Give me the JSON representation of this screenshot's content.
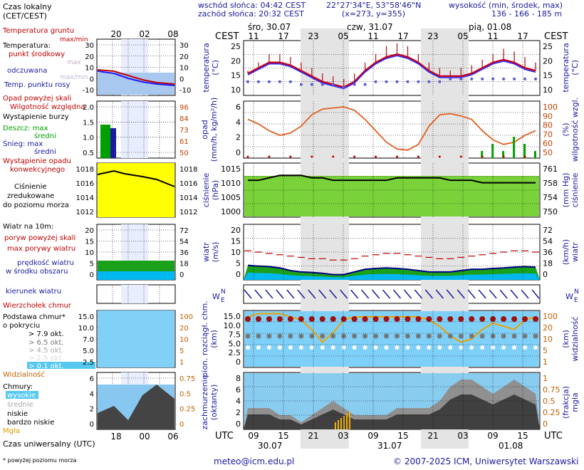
{
  "header": {
    "sunrise": "wschód słońca: 04:42 CEST",
    "sunset": "zachód słońca: 20:32 CEST",
    "coords": "22°27'34\"E, 53°58'46\"N",
    "grid": "(x=273, y=355)",
    "elev_label": "wysokość (min, środek, max)",
    "elev_values": "136 - 166 - 185 m"
  },
  "footer": {
    "note": "* powyżej poziomu morza",
    "email": "meteo@icm.edu.pl",
    "copyright": "© 2007-2025 ICM, Uniwersytet Warszawski"
  },
  "left": {
    "local_time_label": "Czas lokalny",
    "local_time_sub": "(CET/CEST)",
    "local_ticks": [
      "20",
      "02",
      "08"
    ],
    "utc_ticks": [
      "18",
      "00",
      "06"
    ],
    "utc_label": "Czas uniwersalny (UTC)",
    "temp": {
      "soil": "Temperatura gruntu",
      "soil_sub": "max/min",
      "title": "Temperatura:",
      "mid": "punkt środkowy",
      "max": "max",
      "min": "max/min",
      "feel": "odczuwana",
      "dew": "Temp. punktu rosy",
      "ticks": [
        "30",
        "20",
        "10",
        "0",
        "-10"
      ],
      "rticks": [
        "30",
        "20",
        "10",
        "0",
        "-10"
      ]
    },
    "precip": {
      "over": "Opad powyżej skali",
      "humid": "Wilgotność względna",
      "storm": "Wystąpienie burzy",
      "rain_max": "Deszcz: max",
      "rain_mean": "średni",
      "snow_max": "Śnieg:   max",
      "snow_mean": "średni",
      "occ1": "Wystąpienie opadu",
      "occ2": "konwekcyjnego",
      "ticks": [
        "2.0",
        "1.5",
        "1.0",
        "0.5"
      ],
      "rticks": [
        "96",
        "84",
        "73",
        "61",
        "50"
      ]
    },
    "pressure": {
      "l1": "Ciśnienie",
      "l2": "zredukowane",
      "l3": "do poziomu morza",
      "ticks": [
        "1018",
        "1016",
        "1014",
        "1012"
      ],
      "rticks": [
        "1018",
        "1016",
        "1014",
        "1012"
      ]
    },
    "wind": {
      "title": "Wiatr na 10m:",
      "gust_over": "poryw powyżej skali",
      "gust_max": "max porywy wiatru",
      "speed1": "prędkość wiatru",
      "speed2": "w środku obszaru",
      "ticks": [
        "20",
        "15",
        "10",
        "5",
        "0"
      ],
      "rticks": [
        "72",
        "54",
        "36",
        "18",
        "0"
      ]
    },
    "direction": "kierunek wiatru",
    "cloudbase": {
      "top": "Wierzchołek chmur",
      "base": "Podstawa chmur*",
      "cover": "o pokryciu",
      "o79": "> 7.9 okt.",
      "o65": "> 6.5 okt.",
      "o45": "> 4.5 okt.",
      "o25": "> 2.5 okt.",
      "o01": "> 0.1 okt.",
      "vis": "Widzialność",
      "ticks": [
        "15.0",
        "10.0",
        "7.0",
        "5.0",
        "2.5"
      ],
      "rticks": [
        "100",
        "20",
        "10",
        "5",
        "1"
      ]
    },
    "clouds": {
      "title": "Chmury:",
      "high": "wysokie",
      "mid": "średnie",
      "low": "niskie",
      "vlow": "bardzo niskie",
      "fog": "Mgła",
      "ticks": [
        "6",
        "4",
        "2",
        "0"
      ],
      "rticks": [
        "0.75",
        "0.5",
        "0.25",
        "0"
      ]
    }
  },
  "main": {
    "cest": "CEST",
    "utc": "UTC",
    "days_top": [
      "śro, 30.07",
      "czw, 31.07",
      "pią, 01.08"
    ],
    "top_ticks": [
      "11",
      "17",
      "23",
      "05",
      "11",
      "17",
      "23",
      "05",
      "11",
      "17"
    ],
    "bottom_ticks": [
      "09",
      "15",
      "21",
      "03",
      "09",
      "15",
      "21",
      "03",
      "09",
      "15"
    ],
    "days_bottom": [
      "30.07",
      "31.07",
      "01.08"
    ],
    "axis_labels": {
      "temp_l": "temperatura",
      "temp_lu": "(°C)",
      "temp_r": "temperatura",
      "temp_ru": "(°C)",
      "prec_l": "opad",
      "prec_lu": "(mm/h, kg/m²/h)",
      "prec_r": "wilgotność wzgl.",
      "prec_ru": "(%)",
      "pres_l": "ciśnienie",
      "pres_lu": "(hPa)",
      "pres_r": "ciśnienie",
      "pres_ru": "(mm Hg)",
      "wind_l": "wiatr",
      "wind_lu": "(m/s)",
      "wind_r": "wiatr",
      "wind_ru": "(km/h)",
      "cb_l": "pion. rozciągł. chm.",
      "cb_lu": "(km)",
      "cb_r": "widzialność",
      "cb_ru": "(km)",
      "cl_l": "zachmurzenie",
      "cl_lu": "(oktanty)",
      "cl_r": "mgła",
      "cl_ru": "(frakcja)"
    },
    "temp_ticks": [
      "25",
      "20",
      "15",
      "10"
    ],
    "prec_ticks": [
      "6",
      "4",
      "2",
      "0"
    ],
    "humid_ticks": [
      "100",
      "90",
      "80",
      "70",
      "60",
      "50"
    ],
    "pres_ticks": [
      "1015",
      "1010",
      "1005",
      "1000"
    ],
    "mmhg_ticks": [
      "761",
      "758",
      "754",
      "750"
    ],
    "wind_ticks": [
      "20",
      "15",
      "10",
      "5",
      "0"
    ],
    "kmh_ticks": [
      "72",
      "54",
      "36",
      "18",
      "0"
    ],
    "cb_ticks": [
      "15.0",
      "10.0",
      "7.5",
      "5.0",
      "2.5",
      "0"
    ],
    "vis_ticks": [
      "100",
      "20",
      "10",
      "5",
      "1"
    ],
    "cl_ticks": [
      "8",
      "6",
      "4",
      "2",
      "0"
    ],
    "fog_ticks": [
      "1",
      "0.75",
      "0.5",
      "0.25",
      "0"
    ]
  },
  "chart_data": {
    "type": "line",
    "x_hours_utc_label": "UTC",
    "temperature_mid": [
      16,
      18,
      20,
      20,
      19,
      17,
      15,
      13,
      12,
      11,
      13,
      17,
      20,
      22,
      23,
      22,
      20,
      17,
      15,
      15,
      15,
      16,
      18,
      20,
      21,
      20,
      18,
      17
    ],
    "temperature_max": [
      17,
      20,
      23,
      23,
      22,
      20,
      18,
      16,
      15,
      14,
      16,
      20,
      23,
      26,
      27,
      26,
      23,
      20,
      18,
      17,
      18,
      19,
      21,
      23,
      25,
      24,
      22,
      20
    ],
    "dew_point": [
      13,
      13,
      13,
      13,
      13,
      12,
      12,
      12,
      12,
      11,
      12,
      12,
      13,
      13,
      13,
      13,
      13,
      13,
      13,
      14,
      14,
      14,
      14,
      14,
      14,
      14,
      14,
      14
    ],
    "humidity": [
      84,
      80,
      74,
      70,
      72,
      78,
      88,
      93,
      94,
      95,
      92,
      84,
      74,
      64,
      58,
      57,
      62,
      78,
      88,
      89,
      87,
      84,
      74,
      66,
      62,
      64,
      70,
      74
    ],
    "pressure": [
      1010,
      1010,
      1011,
      1012,
      1012,
      1012,
      1011,
      1011,
      1010,
      1010,
      1010,
      1010,
      1010,
      1010,
      1011,
      1011,
      1011,
      1011,
      1011,
      1010,
      1010,
      1010,
      1009,
      1009,
      1009,
      1009,
      1009,
      1009
    ],
    "wind_speed": [
      5.5,
      5.2,
      5,
      4.5,
      3.5,
      3,
      2.8,
      2.5,
      2,
      2,
      3,
      4,
      4.3,
      4.5,
      4.3,
      4,
      3.5,
      3,
      3,
      3,
      3.5,
      4,
      4,
      4.3,
      4.5,
      4.8,
      5,
      4.8
    ],
    "wind_gust": [
      11,
      10.5,
      10,
      9.5,
      9,
      8.5,
      8,
      8,
      7.5,
      7.5,
      8,
      9,
      9.5,
      10,
      10,
      9.5,
      9,
      8.5,
      8,
      8,
      8.5,
      9,
      9.5,
      10,
      10.5,
      11,
      11,
      10.5
    ],
    "visibility_line": [
      16,
      17,
      17,
      17,
      16,
      15,
      12,
      8,
      11,
      15,
      16,
      16,
      16,
      16,
      16,
      16,
      16,
      15,
      13,
      10,
      8,
      9,
      12,
      14,
      13,
      12,
      15,
      16
    ],
    "cloud_cover_total": [
      3,
      3,
      3,
      2,
      2,
      1,
      2,
      3,
      4,
      3,
      2,
      2,
      2,
      2,
      3,
      3,
      3,
      3,
      4,
      6,
      7,
      7,
      6,
      5,
      6,
      7,
      6,
      5
    ],
    "precip_convective": [
      0,
      0,
      0,
      0,
      0,
      0,
      0,
      0,
      0,
      0,
      0,
      0,
      0,
      0,
      0,
      0,
      0,
      0,
      0,
      0,
      0,
      0,
      1,
      2,
      1,
      3,
      2,
      1
    ]
  }
}
